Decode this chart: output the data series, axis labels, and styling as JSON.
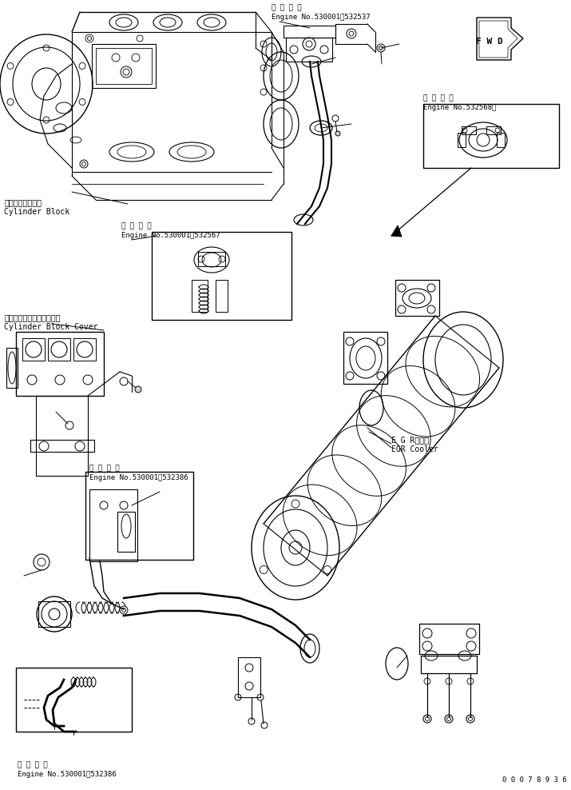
{
  "figure_width": 7.15,
  "figure_height": 9.88,
  "dpi": 100,
  "bg_color": "#ffffff",
  "part_number": "0 0 0 7 8 9 3 6",
  "labels": {
    "cylinder_block_jp": "シリンダブロック",
    "cylinder_block_en": "Cylinder Block",
    "cylinder_block_cover_jp": "シリンダブロックカバー－",
    "cylinder_block_cover_en": "Cylinder Block Cover",
    "egr_cooler_jp": "E G Rクーラ",
    "egr_cooler_en": "EGR Cooler",
    "appl_jp": "適 用 号 機",
    "engine_range1": "Engine No.530001～532537",
    "engine_range2": "Engine No.530001～532567",
    "engine_range3": "Engine No.530001～532386",
    "engine_range4": "Engine No.532568～",
    "engine_range5": "Engine No.530001～532386",
    "fwd_label": "F W D"
  },
  "line_color": "#000000",
  "annotation_fontsize": 6.5,
  "label_fontsize": 7
}
